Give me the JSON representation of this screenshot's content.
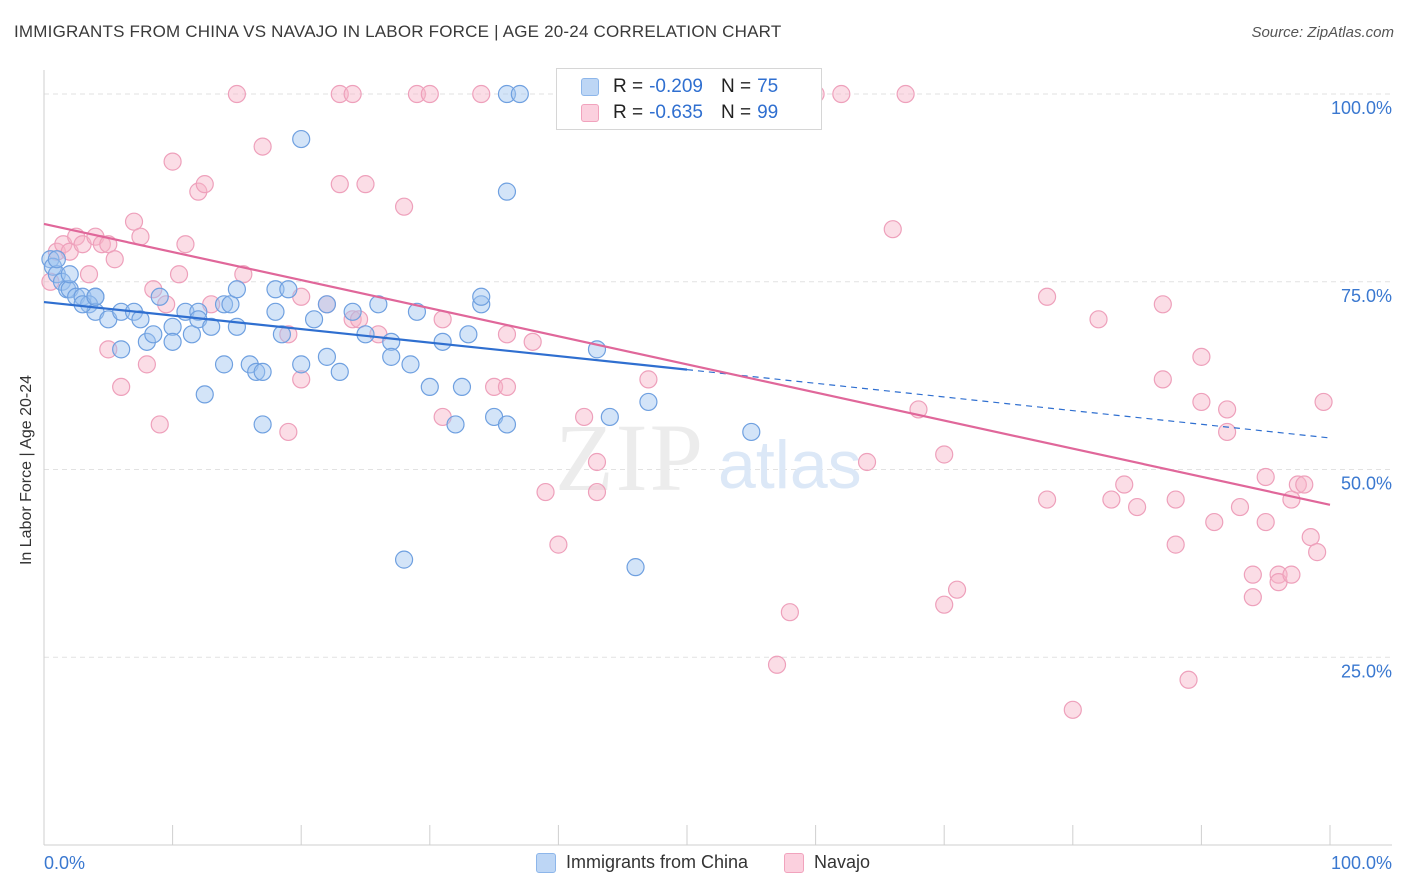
{
  "title": "IMMIGRANTS FROM CHINA VS NAVAJO IN LABOR FORCE | AGE 20-24 CORRELATION CHART",
  "source": "Source: ZipAtlas.com",
  "watermark": {
    "zip": "ZIP",
    "atlas": "atlas"
  },
  "legend": {
    "rows": [
      {
        "r_label": "R =",
        "r_value": "-0.209",
        "n_label": "N =",
        "n_value": "75"
      },
      {
        "r_label": "R =",
        "r_value": "-0.635",
        "n_label": "N =",
        "n_value": "99"
      }
    ]
  },
  "bottom_legend": {
    "series1": "Immigrants from China",
    "series2": "Navajo"
  },
  "colors": {
    "china": "#9ec4f0",
    "china_line": "#2f6fd0",
    "navajo": "#f7b3c8",
    "navajo_line": "#e0679a",
    "axis_text": "#3a78d0",
    "grid": "#e2e2e2"
  },
  "chart_data": {
    "type": "scatter",
    "title": "IMMIGRANTS FROM CHINA VS NAVAJO IN LABOR FORCE | AGE 20-24 CORRELATION CHART",
    "xlabel": "",
    "ylabel": "In Labor Force | Age 20-24",
    "xlim": [
      0,
      100
    ],
    "ylim": [
      0,
      102
    ],
    "x_tick_labels": [
      "0.0%",
      "100.0%"
    ],
    "y_ticks": [
      25,
      50,
      75,
      100
    ],
    "y_tick_labels": [
      "25.0%",
      "50.0%",
      "75.0%",
      "100.0%"
    ],
    "series": [
      {
        "name": "Immigrants from China",
        "r": -0.209,
        "n": 75,
        "trend": {
          "x0": 0,
          "y0": 72.3,
          "x1": 50,
          "y1": 63.3,
          "dash_x1": 100,
          "dash_y1": 54.2
        },
        "points": [
          [
            0.5,
            78
          ],
          [
            0.7,
            77
          ],
          [
            1,
            76
          ],
          [
            1.4,
            75
          ],
          [
            1.8,
            74
          ],
          [
            2,
            74
          ],
          [
            2.5,
            73
          ],
          [
            3,
            73
          ],
          [
            4,
            73
          ],
          [
            3.5,
            72
          ],
          [
            4,
            71
          ],
          [
            5,
            70
          ],
          [
            6,
            71
          ],
          [
            6,
            66
          ],
          [
            7,
            71
          ],
          [
            7.5,
            70
          ],
          [
            8,
            67
          ],
          [
            8.5,
            68
          ],
          [
            9,
            73
          ],
          [
            10,
            69
          ],
          [
            10,
            67
          ],
          [
            11,
            71
          ],
          [
            11.5,
            68
          ],
          [
            12,
            71
          ],
          [
            12,
            70
          ],
          [
            12.5,
            60
          ],
          [
            13,
            69
          ],
          [
            14,
            72
          ],
          [
            14,
            64
          ],
          [
            14.5,
            72
          ],
          [
            15,
            69
          ],
          [
            15,
            74
          ],
          [
            16,
            64
          ],
          [
            16.5,
            63
          ],
          [
            17,
            63
          ],
          [
            17,
            56
          ],
          [
            18,
            71
          ],
          [
            18,
            74
          ],
          [
            18.5,
            68
          ],
          [
            19,
            74
          ],
          [
            20,
            64
          ],
          [
            21,
            70
          ],
          [
            22,
            72
          ],
          [
            22,
            65
          ],
          [
            23,
            63
          ],
          [
            24,
            71
          ],
          [
            25,
            68
          ],
          [
            26,
            72
          ],
          [
            27,
            67
          ],
          [
            27,
            65
          ],
          [
            28,
            38
          ],
          [
            28.5,
            64
          ],
          [
            29,
            71
          ],
          [
            30,
            61
          ],
          [
            31,
            67
          ],
          [
            32,
            56
          ],
          [
            32.5,
            61
          ],
          [
            33,
            68
          ],
          [
            34,
            72
          ],
          [
            34,
            73
          ],
          [
            35,
            57
          ],
          [
            36,
            87
          ],
          [
            36,
            100
          ],
          [
            37,
            100
          ],
          [
            20,
            94
          ],
          [
            36,
            56
          ],
          [
            43,
            66
          ],
          [
            44,
            57
          ],
          [
            46,
            37
          ],
          [
            47,
            59
          ],
          [
            55,
            55
          ],
          [
            1,
            78
          ],
          [
            2,
            76
          ],
          [
            3,
            72
          ],
          [
            4,
            73
          ]
        ]
      },
      {
        "name": "Navajo",
        "r": -0.635,
        "n": 99,
        "trend": {
          "x0": 0,
          "y0": 82.7,
          "x1": 100,
          "y1": 45.3
        },
        "points": [
          [
            0.5,
            75
          ],
          [
            1,
            79
          ],
          [
            1.5,
            80
          ],
          [
            2,
            79
          ],
          [
            2.5,
            81
          ],
          [
            3,
            80
          ],
          [
            3.5,
            76
          ],
          [
            4,
            81
          ],
          [
            4.5,
            80
          ],
          [
            5,
            80
          ],
          [
            5,
            66
          ],
          [
            5.5,
            78
          ],
          [
            6,
            61
          ],
          [
            7,
            83
          ],
          [
            7.5,
            81
          ],
          [
            8,
            64
          ],
          [
            8.5,
            74
          ],
          [
            9,
            56
          ],
          [
            9.5,
            72
          ],
          [
            10,
            91
          ],
          [
            10.5,
            76
          ],
          [
            11,
            80
          ],
          [
            12,
            87
          ],
          [
            12.5,
            88
          ],
          [
            13,
            72
          ],
          [
            15,
            100
          ],
          [
            15.5,
            76
          ],
          [
            17,
            93
          ],
          [
            19,
            55
          ],
          [
            19,
            68
          ],
          [
            20,
            73
          ],
          [
            20,
            62
          ],
          [
            22,
            72
          ],
          [
            23,
            100
          ],
          [
            23,
            88
          ],
          [
            24,
            70
          ],
          [
            24,
            100
          ],
          [
            24.5,
            70
          ],
          [
            25,
            88
          ],
          [
            26,
            68
          ],
          [
            28,
            85
          ],
          [
            29,
            100
          ],
          [
            30,
            100
          ],
          [
            31,
            57
          ],
          [
            31,
            70
          ],
          [
            34,
            100
          ],
          [
            35,
            61
          ],
          [
            36,
            61
          ],
          [
            36,
            68
          ],
          [
            38,
            67
          ],
          [
            39,
            47
          ],
          [
            40,
            40
          ],
          [
            42,
            57
          ],
          [
            43,
            51
          ],
          [
            43,
            47
          ],
          [
            47,
            62
          ],
          [
            47,
            100
          ],
          [
            57,
            24
          ],
          [
            58,
            31
          ],
          [
            60,
            100
          ],
          [
            62,
            100
          ],
          [
            64,
            51
          ],
          [
            66,
            82
          ],
          [
            67,
            100
          ],
          [
            68,
            58
          ],
          [
            70,
            52
          ],
          [
            70,
            32
          ],
          [
            71,
            34
          ],
          [
            78,
            46
          ],
          [
            78,
            73
          ],
          [
            80,
            18
          ],
          [
            82,
            70
          ],
          [
            83,
            46
          ],
          [
            84,
            48
          ],
          [
            85,
            45
          ],
          [
            87,
            72
          ],
          [
            87,
            62
          ],
          [
            88,
            46
          ],
          [
            88,
            40
          ],
          [
            89,
            22
          ],
          [
            90,
            65
          ],
          [
            90,
            59
          ],
          [
            91,
            43
          ],
          [
            92,
            58
          ],
          [
            92,
            55
          ],
          [
            93,
            45
          ],
          [
            94,
            36
          ],
          [
            94,
            33
          ],
          [
            95,
            43
          ],
          [
            95,
            49
          ],
          [
            96,
            36
          ],
          [
            96,
            35
          ],
          [
            97,
            46
          ],
          [
            97,
            36
          ],
          [
            97.5,
            48
          ],
          [
            98,
            48
          ],
          [
            98.5,
            41
          ],
          [
            99,
            39
          ],
          [
            99.5,
            59
          ]
        ]
      }
    ]
  }
}
